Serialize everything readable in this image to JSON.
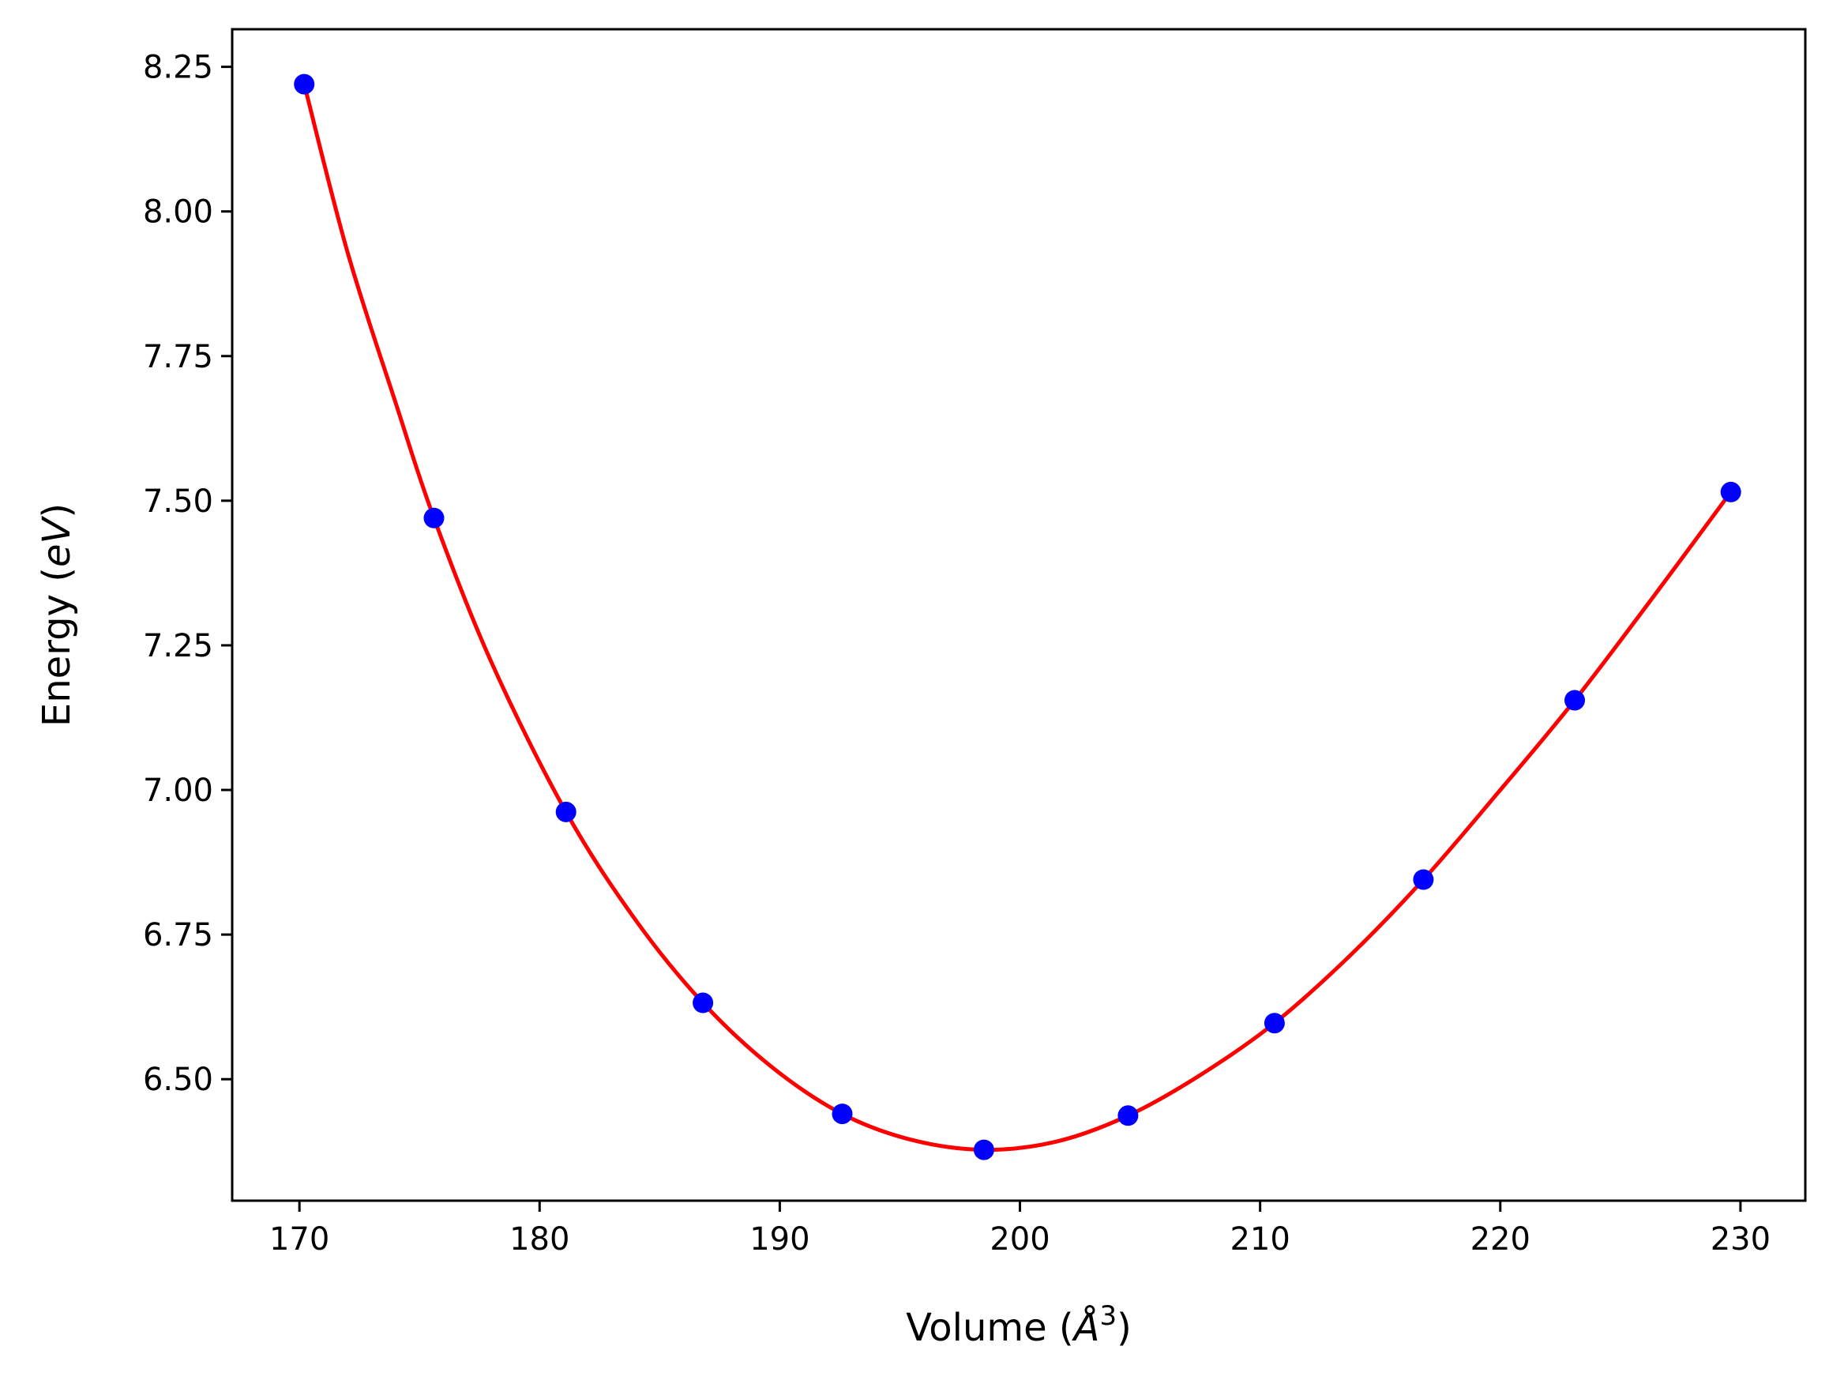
{
  "chart_data": {
    "type": "scatter",
    "xlabel": {
      "prefix": "Volume (",
      "var": "Å",
      "sup": "3",
      "suffix": ")"
    },
    "ylabel": {
      "prefix": "Energy (",
      "var": "eV",
      "suffix": ")"
    },
    "xlim": [
      167.2,
      232.7
    ],
    "ylim": [
      6.29,
      8.315
    ],
    "xticks": [
      170,
      180,
      190,
      200,
      210,
      220,
      230
    ],
    "yticks": [
      6.5,
      6.75,
      7.0,
      7.25,
      7.5,
      7.75,
      8.0,
      8.25
    ],
    "xtick_labels": [
      "170",
      "180",
      "190",
      "200",
      "210",
      "220",
      "230"
    ],
    "ytick_labels": [
      "6.50",
      "6.75",
      "7.00",
      "7.25",
      "7.50",
      "7.75",
      "8.00",
      "8.25"
    ],
    "grid": false,
    "series": [
      {
        "kind": "points",
        "color": "#0000ff",
        "x": [
          170.2,
          175.6,
          181.1,
          186.8,
          192.6,
          198.5,
          204.5,
          210.6,
          216.8,
          223.1,
          229.6
        ],
        "y": [
          8.22,
          7.47,
          6.962,
          6.632,
          6.44,
          6.378,
          6.437,
          6.597,
          6.845,
          7.155,
          7.515
        ]
      },
      {
        "kind": "fit-line",
        "color": "#ff0000",
        "x": [
          170.2,
          172.0,
          174.0,
          175.6,
          178.0,
          181.1,
          184.0,
          186.8,
          189.7,
          192.6,
          195.5,
          198.5,
          201.5,
          204.5,
          207.5,
          210.6,
          213.7,
          216.8,
          219.9,
          223.1,
          226.3,
          229.6
        ],
        "y": [
          8.22,
          7.93,
          7.67,
          7.47,
          7.22,
          6.962,
          6.775,
          6.632,
          6.52,
          6.44,
          6.395,
          6.378,
          6.392,
          6.437,
          6.507,
          6.597,
          6.712,
          6.845,
          6.995,
          7.155,
          7.33,
          7.515
        ]
      }
    ]
  }
}
